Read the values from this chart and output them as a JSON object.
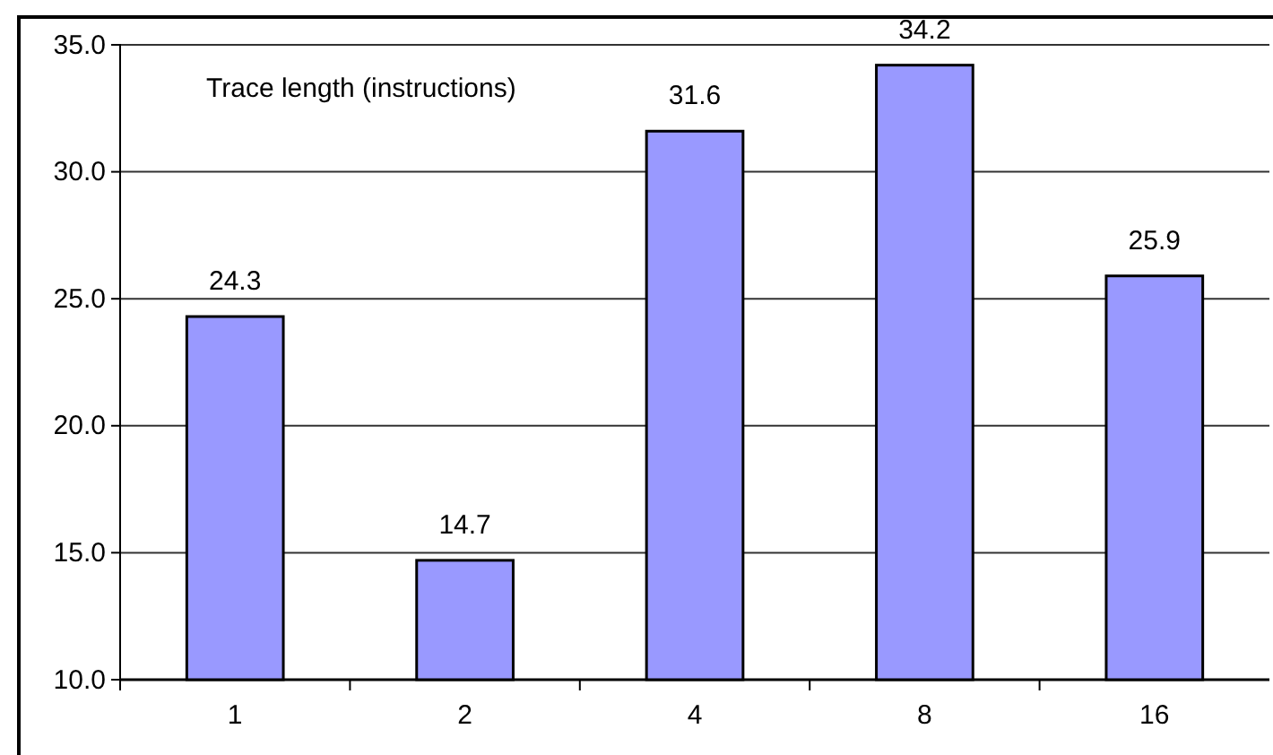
{
  "chart_data": {
    "type": "bar",
    "title": "Trace length (instructions)",
    "categories": [
      "1",
      "2",
      "4",
      "8",
      "16"
    ],
    "values": [
      24.3,
      14.7,
      31.6,
      34.2,
      25.9
    ],
    "color": "#9999ff",
    "ylim": [
      10,
      35
    ],
    "yticks": [
      {
        "value": 10,
        "label": "10.0"
      },
      {
        "value": 15,
        "label": "15.0"
      },
      {
        "value": 20,
        "label": "20.0"
      },
      {
        "value": 25,
        "label": "25.0"
      },
      {
        "value": 30,
        "label": "30.0"
      },
      {
        "value": 35,
        "label": "35.0"
      }
    ],
    "grid": "y",
    "data_labels": true
  }
}
